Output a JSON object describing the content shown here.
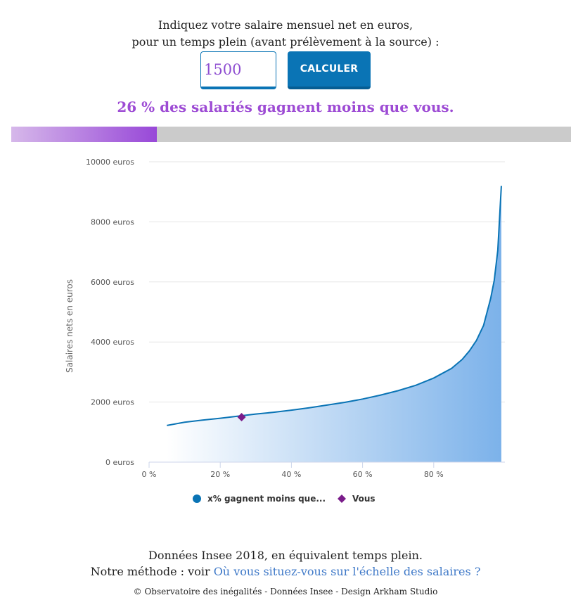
{
  "intro": {
    "line1": "Indiquez votre salaire mensuel net en euros,",
    "line2": "pour un temps plein (avant prélèvement à la source) :"
  },
  "form": {
    "salary_value": "1500",
    "calculate_label": "CALCULER"
  },
  "result": {
    "text": "26 % des salariés gagnent moins que vous.",
    "percent": 26
  },
  "colors": {
    "accent_purple": "#9848d8",
    "button_blue": "#0a74b5",
    "line_blue": "#0a74b5",
    "area_blue": "#7cb2ea",
    "marker_purple": "#7a1c8a"
  },
  "chart_data": {
    "type": "area",
    "title": "",
    "xlabel": "",
    "ylabel": "Salaires nets en euros",
    "xlim": [
      0,
      100
    ],
    "ylim": [
      0,
      10000
    ],
    "x_ticks": [
      {
        "value": 0,
        "label": "0 %"
      },
      {
        "value": 20,
        "label": "20 %"
      },
      {
        "value": 40,
        "label": "40 %"
      },
      {
        "value": 60,
        "label": "60 %"
      },
      {
        "value": 80,
        "label": "80 %"
      }
    ],
    "y_ticks": [
      {
        "value": 0,
        "label": "0 euros"
      },
      {
        "value": 2000,
        "label": "2000 euros"
      },
      {
        "value": 4000,
        "label": "4000 euros"
      },
      {
        "value": 6000,
        "label": "6000 euros"
      },
      {
        "value": 8000,
        "label": "8000 euros"
      },
      {
        "value": 10000,
        "label": "10000 euros"
      }
    ],
    "grid": true,
    "legend_position": "bottom",
    "series": [
      {
        "name": "x% gagnent moins que...",
        "x": [
          5,
          10,
          15,
          20,
          25,
          30,
          35,
          40,
          45,
          50,
          55,
          60,
          65,
          70,
          75,
          80,
          85,
          88,
          90,
          92,
          94,
          95,
          96,
          97,
          98,
          99
        ],
        "y": [
          1220,
          1330,
          1400,
          1460,
          1530,
          1600,
          1660,
          1730,
          1810,
          1900,
          1990,
          2100,
          2230,
          2380,
          2560,
          2800,
          3120,
          3420,
          3700,
          4050,
          4550,
          5000,
          5450,
          6050,
          7050,
          9200
        ]
      },
      {
        "name": "Vous",
        "x": [
          26
        ],
        "y": [
          1500
        ]
      }
    ]
  },
  "footer": {
    "source": "Données Insee 2018, en équivalent temps plein.",
    "method_prefix": "Notre méthode : voir",
    "method_link": "Où vous situez-vous sur l'échelle des salaires ?",
    "credits": "© Observatoire des inégalités - Données Insee - Design Arkham Studio"
  }
}
